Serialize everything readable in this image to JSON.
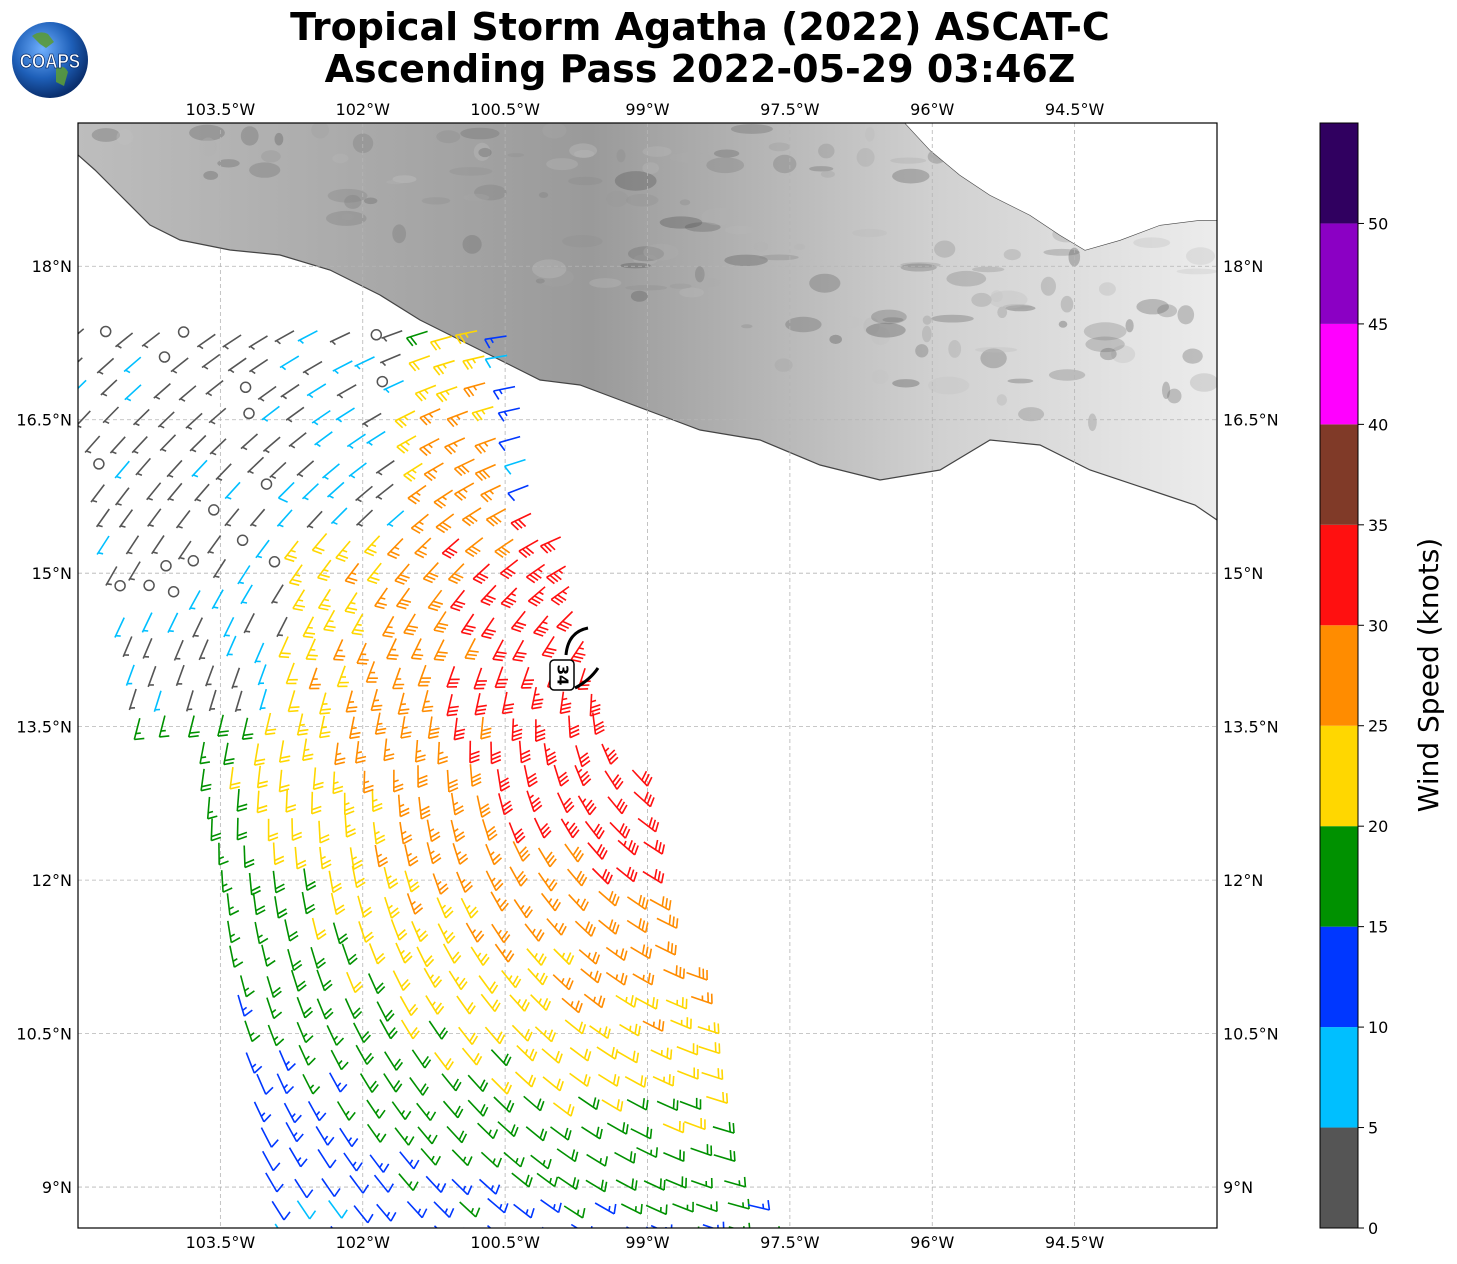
{
  "title": {
    "line1": "Tropical Storm Agatha (2022) ASCAT-C",
    "line2": "Ascending Pass 2022-05-29 03:46Z"
  },
  "logo": {
    "text": "COAPS",
    "icon": "globe-icon"
  },
  "map": {
    "lon_range": [
      -105,
      -93
    ],
    "lat_range": [
      8.6,
      19.4
    ],
    "lon_ticks": [
      {
        "value": -103.5,
        "label": "103.5°W"
      },
      {
        "value": -102,
        "label": "102°W"
      },
      {
        "value": -100.5,
        "label": "100.5°W"
      },
      {
        "value": -99,
        "label": "99°W"
      },
      {
        "value": -97.5,
        "label": "97.5°W"
      },
      {
        "value": -96,
        "label": "96°W"
      },
      {
        "value": -94.5,
        "label": "94.5°W"
      }
    ],
    "lat_ticks": [
      {
        "value": 18,
        "label": "18°N"
      },
      {
        "value": 16.5,
        "label": "16.5°N"
      },
      {
        "value": 15,
        "label": "15°N"
      },
      {
        "value": 13.5,
        "label": "13.5°N"
      },
      {
        "value": 12,
        "label": "12°N"
      },
      {
        "value": 10.5,
        "label": "10.5°N"
      },
      {
        "value": 9,
        "label": "9°N"
      }
    ],
    "grid": true,
    "storm_center": {
      "lon": -98.6,
      "lat": 14.1
    },
    "wind_radius_label": "34",
    "land_color": "#d9d9d9",
    "coast_color": "#444444"
  },
  "colorbar": {
    "label": "Wind Speed (knots)",
    "bins": [
      {
        "min": 0,
        "max": 5,
        "color": "#555555"
      },
      {
        "min": 5,
        "max": 10,
        "color": "#00bfff"
      },
      {
        "min": 10,
        "max": 15,
        "color": "#0037ff"
      },
      {
        "min": 15,
        "max": 20,
        "color": "#009100"
      },
      {
        "min": 20,
        "max": 25,
        "color": "#ffd700"
      },
      {
        "min": 25,
        "max": 30,
        "color": "#ff8c00"
      },
      {
        "min": 30,
        "max": 35,
        "color": "#ff1010"
      },
      {
        "min": 35,
        "max": 40,
        "color": "#803a28"
      },
      {
        "min": 40,
        "max": 45,
        "color": "#ff00ff"
      },
      {
        "min": 45,
        "max": 50,
        "color": "#8b00c4"
      },
      {
        "min": 50,
        "max": 55,
        "color": "#300060"
      }
    ],
    "tick_labels": [
      "0",
      "5",
      "10",
      "15",
      "20",
      "25",
      "30",
      "35",
      "40",
      "45",
      "50"
    ]
  }
}
